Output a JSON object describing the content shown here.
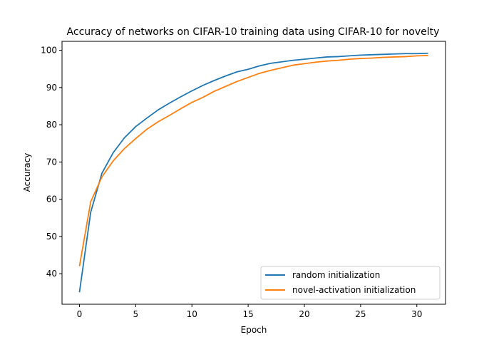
{
  "chart_data": {
    "type": "line",
    "title": "Accuracy of networks on CIFAR-10 training data using CIFAR-10 for novelty",
    "xlabel": "Epoch",
    "ylabel": "Accuracy",
    "xlim": [
      -1.55,
      32.55
    ],
    "ylim": [
      31.8,
      102.4
    ],
    "xticks": [
      0,
      5,
      10,
      15,
      20,
      25,
      30
    ],
    "yticks": [
      40,
      50,
      60,
      70,
      80,
      90,
      100
    ],
    "grid": false,
    "legend_position": "lower-right",
    "x": [
      0,
      1,
      2,
      3,
      4,
      5,
      6,
      7,
      8,
      9,
      10,
      11,
      12,
      13,
      14,
      15,
      16,
      17,
      18,
      19,
      20,
      21,
      22,
      23,
      24,
      25,
      26,
      27,
      28,
      29,
      30,
      31
    ],
    "series": [
      {
        "name": "random initialization",
        "color": "#1f77b4",
        "values": [
          35.0,
          56.5,
          67.0,
          72.5,
          76.5,
          79.5,
          81.8,
          84.0,
          85.8,
          87.5,
          89.1,
          90.6,
          91.9,
          93.1,
          94.2,
          94.9,
          95.8,
          96.5,
          96.9,
          97.3,
          97.6,
          97.9,
          98.2,
          98.3,
          98.5,
          98.7,
          98.8,
          98.9,
          99.0,
          99.1,
          99.1,
          99.2
        ]
      },
      {
        "name": "novel-activation initialization",
        "color": "#ff7f0e",
        "values": [
          42.0,
          59.3,
          66.0,
          70.3,
          73.6,
          76.3,
          78.8,
          80.8,
          82.5,
          84.3,
          86.0,
          87.4,
          89.0,
          90.3,
          91.6,
          92.7,
          93.8,
          94.6,
          95.3,
          96.0,
          96.4,
          96.8,
          97.1,
          97.3,
          97.6,
          97.8,
          97.9,
          98.1,
          98.2,
          98.3,
          98.5,
          98.6
        ]
      }
    ]
  }
}
